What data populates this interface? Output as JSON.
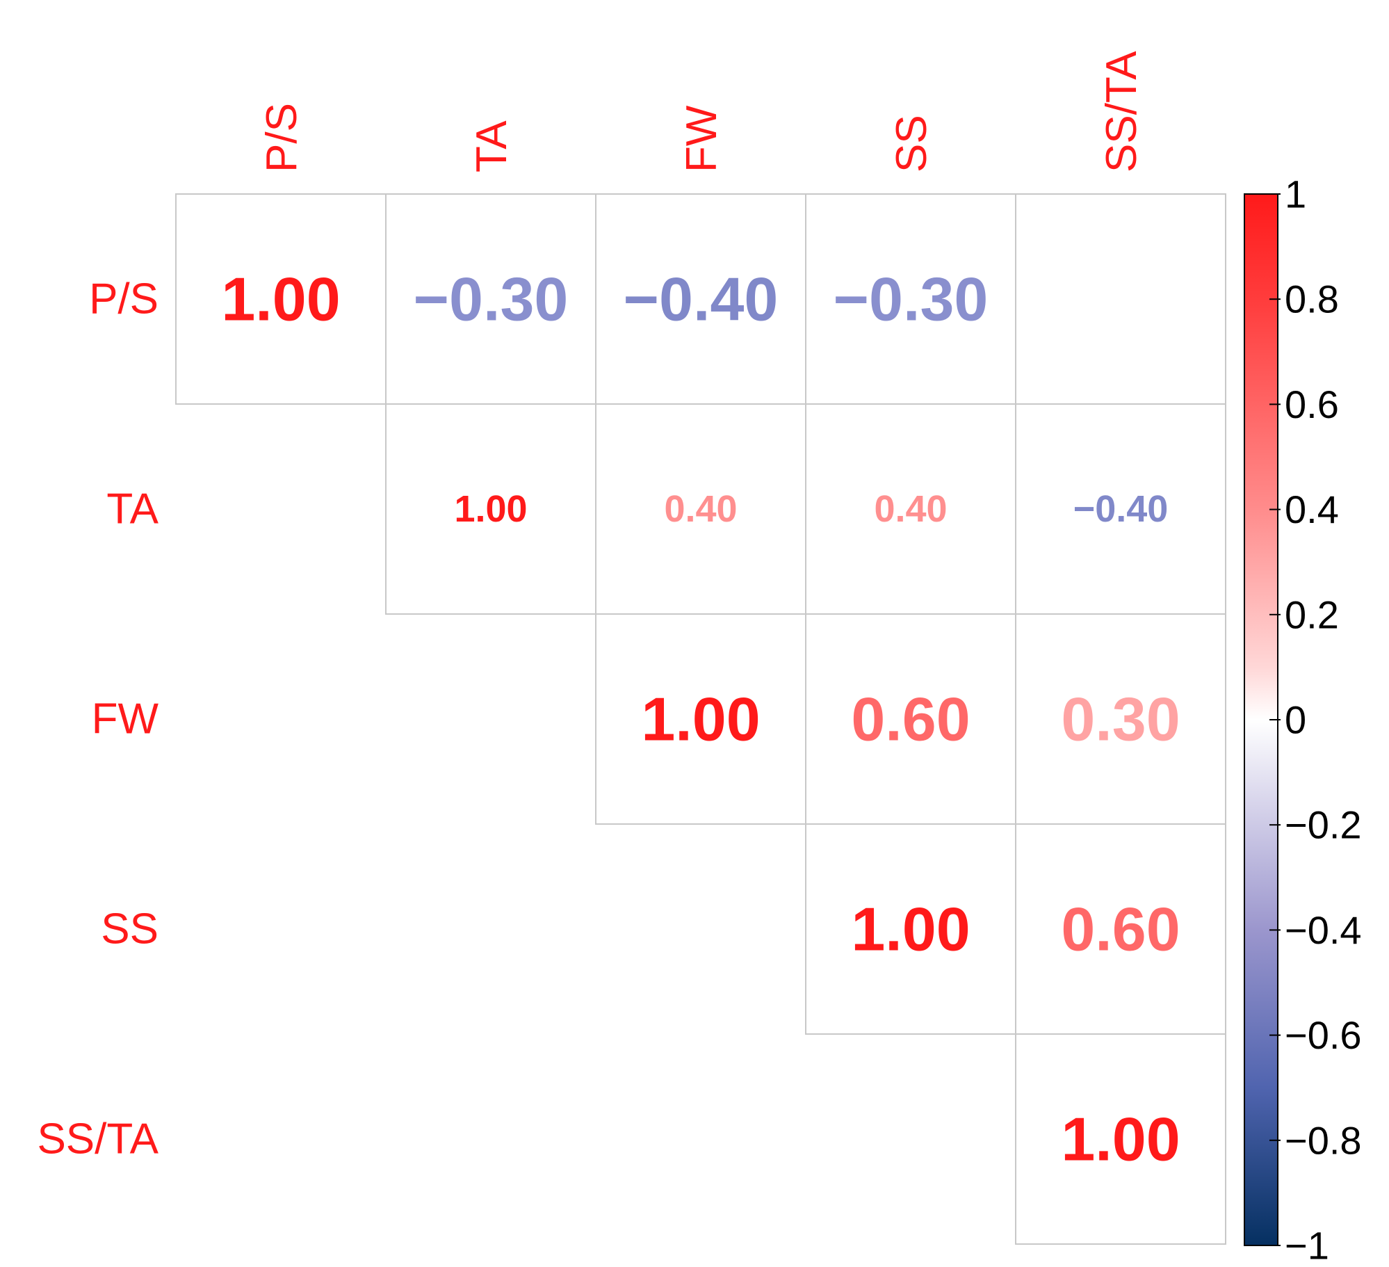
{
  "chart_data": {
    "type": "heatmap",
    "variables": [
      "P/S",
      "TA",
      "FW",
      "SS",
      "SS/TA"
    ],
    "matrix_upper": [
      [
        "1.00",
        "−0.30",
        "−0.40",
        "−0.30",
        ""
      ],
      [
        "",
        "1.00",
        "0.40",
        "0.40",
        "−0.40"
      ],
      [
        "",
        "",
        "1.00",
        "0.60",
        "0.30"
      ],
      [
        "",
        "",
        "",
        "1.00",
        "0.60"
      ],
      [
        "",
        "",
        "",
        "",
        "1.00"
      ]
    ],
    "values_upper": [
      [
        1.0,
        -0.3,
        -0.4,
        -0.3,
        null
      ],
      [
        null,
        1.0,
        0.4,
        0.4,
        -0.4
      ],
      [
        null,
        null,
        1.0,
        0.6,
        0.3
      ],
      [
        null,
        null,
        null,
        1.0,
        0.6
      ],
      [
        null,
        null,
        null,
        null,
        1.0
      ]
    ],
    "emphasized_rows": [
      0,
      2,
      3,
      4
    ],
    "colorbar": {
      "range": [
        -1,
        1
      ],
      "ticks": [
        1,
        0.8,
        0.6,
        0.4,
        0.2,
        0,
        -0.2,
        -0.4,
        -0.6,
        -0.8,
        -1
      ],
      "tick_labels": [
        "1",
        "0.8",
        "0.6",
        "0.4",
        "0.2",
        "0",
        "−0.2",
        "−0.4",
        "−0.6",
        "−0.8",
        "−1"
      ],
      "colors": {
        "negative": "#053061",
        "mid": "#ffffff",
        "positive": "#ff1a1a"
      }
    },
    "label_color": "#ff1a1a",
    "grid_color": "#c8c8c8"
  }
}
